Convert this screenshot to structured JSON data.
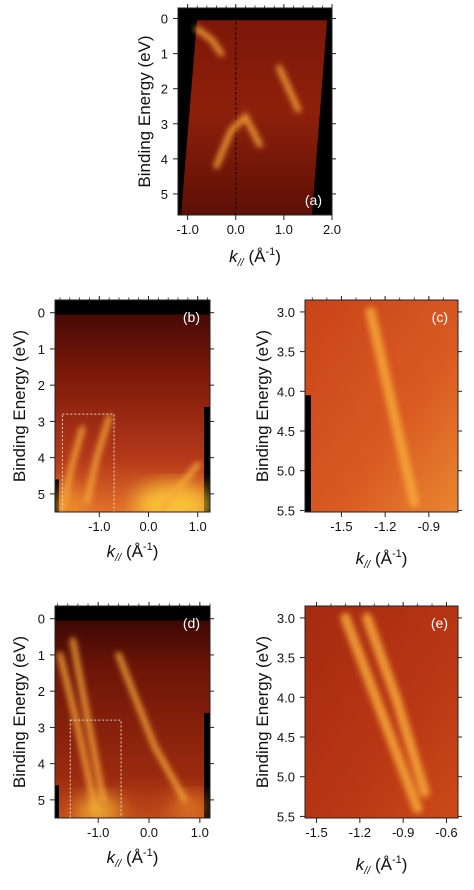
{
  "chart_data": [
    {
      "type": "heatmap",
      "panel_label": "(a)",
      "ylabel": "Binding Energy (eV)",
      "xlabel_k": "k",
      "xlabel_sub": "//",
      "xlabel_unit": " (Å",
      "xlabel_exp": "-1",
      "xlabel_close": ")",
      "x_ticks": [
        "-1.0",
        "0.0",
        "1.0",
        "2.0"
      ],
      "x_tick_values": [
        -1.0,
        0.0,
        1.0,
        2.0
      ],
      "y_ticks": [
        "0",
        "1",
        "2",
        "3",
        "4",
        "5"
      ],
      "y_tick_values": [
        0,
        1,
        2,
        3,
        4,
        5
      ],
      "xlim": [
        -1.2,
        2.0
      ],
      "ylim": [
        -0.3,
        5.6
      ],
      "colormap": [
        "#000000",
        "#5a0a06",
        "#a52a10",
        "#e06a1e",
        "#ffd23a"
      ],
      "bands": [
        {
          "x": [
            -0.8,
            -0.5,
            -0.3
          ],
          "y": [
            0.3,
            0.6,
            1.0
          ]
        },
        {
          "x": [
            0.9,
            1.1,
            1.3
          ],
          "y": [
            1.4,
            2.0,
            2.6
          ]
        },
        {
          "x": [
            -0.4,
            -0.1,
            0.2,
            0.5
          ],
          "y": [
            4.2,
            3.2,
            2.8,
            3.6
          ]
        }
      ]
    },
    {
      "type": "heatmap",
      "panel_label": "(b)",
      "ylabel": "Binding Energy (eV)",
      "xlabel_k": "k",
      "xlabel_sub": "//",
      "xlabel_unit": " (Å",
      "xlabel_exp": "-1",
      "xlabel_close": ")",
      "x_ticks": [
        "-1.0",
        "0.0",
        "1.0"
      ],
      "x_tick_values": [
        -1.0,
        0.0,
        1.0
      ],
      "y_ticks": [
        "0",
        "1",
        "2",
        "3",
        "4",
        "5"
      ],
      "y_tick_values": [
        0,
        1,
        2,
        3,
        4,
        5
      ],
      "xlim": [
        -1.9,
        1.25
      ],
      "ylim": [
        -0.35,
        5.5
      ],
      "colormap": [
        "#000000",
        "#5a0a06",
        "#a52a10",
        "#e06a1e",
        "#ffd23a"
      ],
      "bands": [
        {
          "x": [
            -1.75,
            -1.55,
            -1.35
          ],
          "y": [
            5.4,
            4.2,
            3.2
          ]
        },
        {
          "x": [
            -1.25,
            -1.05,
            -0.8
          ],
          "y": [
            5.2,
            4.0,
            2.9
          ]
        },
        {
          "x": [
            0.3,
            0.7,
            1.0
          ],
          "y": [
            5.4,
            4.7,
            4.2
          ]
        }
      ],
      "inset_box_x": [
        -1.75,
        -0.7
      ],
      "inset_box_y": [
        2.8,
        5.5
      ]
    },
    {
      "type": "heatmap",
      "panel_label": "(c)",
      "ylabel": "Binding Energy (eV)",
      "xlabel_k": "k",
      "xlabel_sub": "//",
      "xlabel_unit": " (Å",
      "xlabel_exp": "-1",
      "xlabel_close": ")",
      "x_ticks": [
        "-1.5",
        "-1.2",
        "-0.9"
      ],
      "x_tick_values": [
        -1.5,
        -1.2,
        -0.9
      ],
      "y_ticks": [
        "3.0",
        "3.5",
        "4.0",
        "4.5",
        "5.0",
        "5.5"
      ],
      "y_tick_values": [
        3.0,
        3.5,
        4.0,
        4.5,
        5.0,
        5.5
      ],
      "xlim": [
        -1.75,
        -0.7
      ],
      "ylim": [
        2.85,
        5.52
      ],
      "colormap": [
        "#000000",
        "#5a0a06",
        "#a52a10",
        "#e06a1e",
        "#ffd23a"
      ],
      "bands": [
        {
          "x": [
            -1.3,
            -1.15,
            -1.0
          ],
          "y": [
            3.0,
            4.2,
            5.4
          ]
        }
      ]
    },
    {
      "type": "heatmap",
      "panel_label": "(d)",
      "ylabel": "Binding Energy (eV)",
      "xlabel_k": "k",
      "xlabel_sub": "//",
      "xlabel_unit": " (Å",
      "xlabel_exp": "-1",
      "xlabel_close": ")",
      "x_ticks": [
        "-1.0",
        "0.0",
        "1.0"
      ],
      "x_tick_values": [
        -1.0,
        0.0,
        1.0
      ],
      "y_ticks": [
        "0",
        "1",
        "2",
        "3",
        "4",
        "5"
      ],
      "y_tick_values": [
        0,
        1,
        2,
        3,
        4,
        5
      ],
      "xlim": [
        -1.85,
        1.2
      ],
      "ylim": [
        -0.35,
        5.5
      ],
      "colormap": [
        "#000000",
        "#5a0a06",
        "#a52a10",
        "#e06a1e",
        "#ffd23a"
      ],
      "bands": [
        {
          "x": [
            -1.75,
            -1.4,
            -1.05
          ],
          "y": [
            1.0,
            3.0,
            5.3
          ]
        },
        {
          "x": [
            -1.5,
            -1.2,
            -0.9
          ],
          "y": [
            0.6,
            2.8,
            5.0
          ]
        },
        {
          "x": [
            -0.6,
            0.1,
            0.7
          ],
          "y": [
            1.0,
            3.5,
            5.0
          ]
        }
      ],
      "inset_box_x": [
        -1.55,
        -0.55
      ],
      "inset_box_y": [
        2.8,
        5.5
      ]
    },
    {
      "type": "heatmap",
      "panel_label": "(e)",
      "ylabel": "Binding Energy (eV)",
      "xlabel_k": "k",
      "xlabel_sub": "//",
      "xlabel_unit": " (Å",
      "xlabel_exp": "-1",
      "xlabel_close": ")",
      "x_ticks": [
        "-1.5",
        "-1.2",
        "-0.9",
        "-0.6"
      ],
      "x_tick_values": [
        -1.5,
        -1.2,
        -0.9,
        -0.6
      ],
      "y_ticks": [
        "3.0",
        "3.5",
        "4.0",
        "4.5",
        "5.0",
        "5.5"
      ],
      "y_tick_values": [
        3.0,
        3.5,
        4.0,
        4.5,
        5.0,
        5.5
      ],
      "xlim": [
        -1.58,
        -0.52
      ],
      "ylim": [
        2.85,
        5.52
      ],
      "colormap": [
        "#000000",
        "#5a0a06",
        "#a52a10",
        "#e06a1e",
        "#ffd23a"
      ],
      "bands": [
        {
          "x": [
            -1.3,
            -1.05,
            -0.8
          ],
          "y": [
            3.0,
            4.2,
            5.4
          ]
        },
        {
          "x": [
            -1.15,
            -0.95,
            -0.75
          ],
          "y": [
            3.0,
            4.0,
            5.2
          ]
        }
      ]
    }
  ]
}
